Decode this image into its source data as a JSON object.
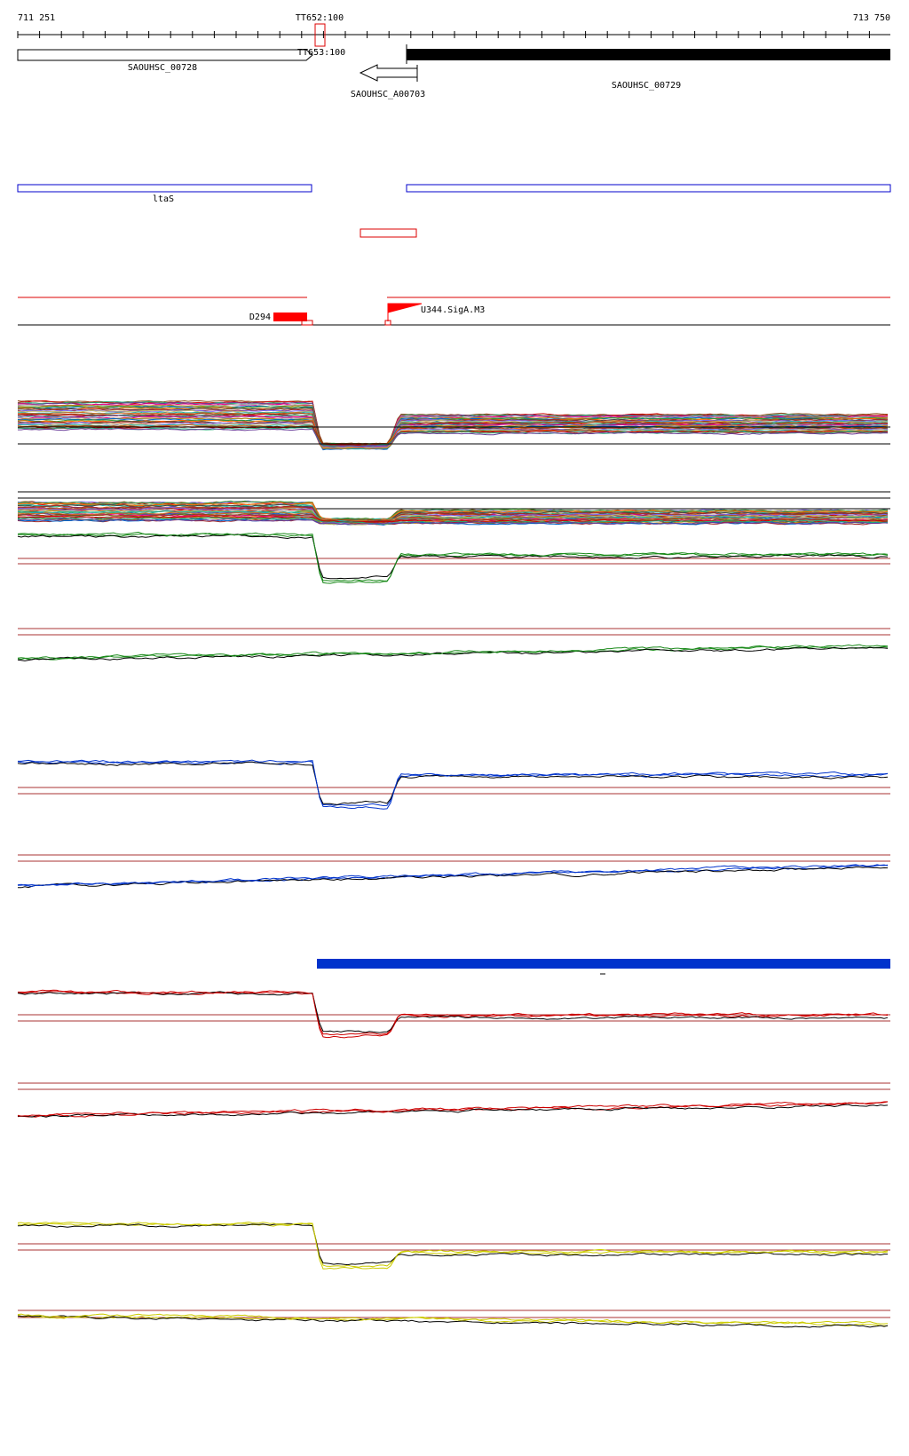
{
  "ruler": {
    "start": "711 251",
    "end": "713 750"
  },
  "terminators": [
    "TT652:100",
    "TT653:100"
  ],
  "genes": [
    "SAOUHSC_00728",
    "SAOUHSC_A00703",
    "SAOUHSC_00729"
  ],
  "operon": "ltaS",
  "promoters": [
    "D294",
    "U344.SigA.M3"
  ]
}
